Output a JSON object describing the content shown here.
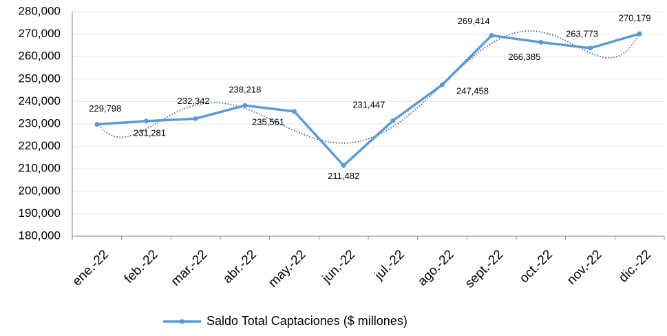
{
  "chart_data": {
    "type": "line",
    "categories": [
      "ene.-22",
      "feb.-22",
      "mar.-22",
      "abr.-22",
      "may.-22",
      "jun.-22",
      "jul.-22",
      "ago.-22",
      "sept.-22",
      "oct.-22",
      "nov.-22",
      "dic.-22"
    ],
    "series": [
      {
        "name": "Saldo Total Captaciones ($ millones)",
        "color": "#5b9bd5",
        "values": [
          229798,
          231281,
          232342,
          238218,
          235561,
          211482,
          231447,
          247458,
          269414,
          266385,
          263773,
          270179
        ],
        "value_labels": [
          "229,798",
          "231,281",
          "232,342",
          "238,218",
          "235,561",
          "211,482",
          "231,447",
          "247,458",
          "269,414",
          "266,385",
          "263,773",
          "270,179"
        ]
      }
    ],
    "ylim": [
      180000,
      280000
    ],
    "yticks": [
      {
        "value": 180000,
        "label": "180,000"
      },
      {
        "value": 190000,
        "label": "190,000"
      },
      {
        "value": 200000,
        "label": "200,000"
      },
      {
        "value": 210000,
        "label": "210,000"
      },
      {
        "value": 220000,
        "label": "220,000"
      },
      {
        "value": 230000,
        "label": "230,000"
      },
      {
        "value": 240000,
        "label": "240,000"
      },
      {
        "value": 250000,
        "label": "250,000"
      },
      {
        "value": 260000,
        "label": "260,000"
      },
      {
        "value": 270000,
        "label": "270,000"
      },
      {
        "value": 280000,
        "label": "280,000"
      }
    ],
    "grid": true,
    "legend": "bottom",
    "trendline": {
      "type": "polynomial",
      "order": 6,
      "color": "#2e5c9e"
    }
  }
}
